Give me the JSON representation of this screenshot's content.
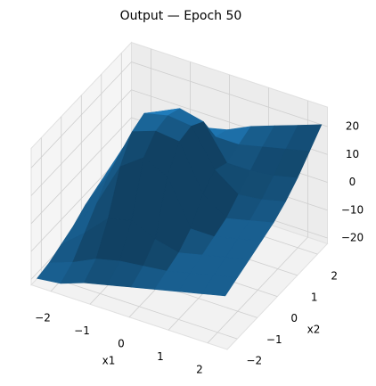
{
  "chart_data": {
    "type": "surface",
    "title": "Output — Epoch 50",
    "xlabel": "x1",
    "ylabel": "x2",
    "color": "#1f77b4",
    "x": [
      -2.4,
      -1.8,
      -1.2,
      -0.6,
      0,
      0.6,
      1.2,
      1.8,
      2.4
    ],
    "y": [
      -2.4,
      -1.8,
      -1.2,
      -0.6,
      0,
      0.6,
      1.2,
      1.8,
      2.4
    ],
    "z": [
      [
        -20,
        -19,
        -16,
        -14,
        -12,
        -10,
        -8,
        -6,
        -4
      ],
      [
        -19,
        -16,
        -12,
        -10,
        -9,
        -8,
        -6,
        -4,
        -2
      ],
      [
        -17,
        -10,
        -2,
        0,
        -4,
        -6,
        -4,
        -2,
        0
      ],
      [
        -15,
        -4,
        12,
        18,
        14,
        -2,
        -2,
        0,
        2
      ],
      [
        -12,
        2,
        20,
        23,
        22,
        6,
        0,
        2,
        4
      ],
      [
        -10,
        4,
        22,
        24,
        23,
        10,
        4,
        5,
        7
      ],
      [
        -8,
        2,
        18,
        22,
        20,
        8,
        8,
        9,
        11
      ],
      [
        -6,
        0,
        10,
        12,
        10,
        10,
        12,
        14,
        16
      ],
      [
        -4,
        0,
        4,
        6,
        8,
        12,
        15,
        18,
        21
      ]
    ],
    "xlim": [
      -2.5,
      2.5
    ],
    "ylim": [
      -2.5,
      2.5
    ],
    "zlim": [
      -22,
      27
    ],
    "xticks": [
      {
        "value": -2,
        "label": "−2"
      },
      {
        "value": -1,
        "label": "−1"
      },
      0,
      1,
      2
    ],
    "yticks": [
      {
        "value": -2,
        "label": "−2"
      },
      {
        "value": -1,
        "label": "−1"
      },
      0,
      1,
      2
    ],
    "zticks": [
      {
        "value": -20,
        "label": "−20"
      },
      {
        "value": -10,
        "label": "−10"
      },
      0,
      10,
      20
    ],
    "grid": true
  }
}
